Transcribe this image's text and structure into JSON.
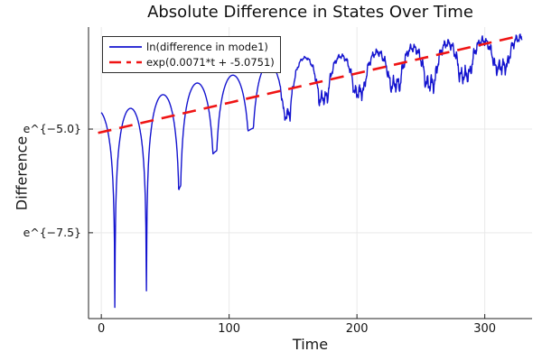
{
  "chart_data": {
    "type": "line",
    "title": "Absolute Difference in States Over Time",
    "xlabel": "Time",
    "ylabel": "Difference",
    "x_axis": {
      "range": [
        -10,
        337
      ]
    },
    "y_axis": {
      "scale": "log",
      "range_ln": [
        -9.57,
        -2.54
      ]
    },
    "xlim": [
      -10,
      337
    ],
    "ylim_ln": [
      -9.57,
      -2.54
    ],
    "grid": true,
    "legend_position": "top-left",
    "x_ticks": {
      "values": [
        0,
        100,
        200,
        300
      ],
      "labels": [
        "0",
        "100",
        "200",
        "300"
      ]
    },
    "y_ticks": {
      "values": [
        -5.0,
        -7.5
      ],
      "labels": [
        "e^{−5.0}",
        "e^{−7.5}"
      ]
    },
    "series": [
      {
        "name": "ln(difference in mode1)",
        "color": "#1414cf",
        "style": "solid",
        "model": {
          "comment": "ln|difference| = arch peaks with sharp log-sin cusp dips; values are ln units read from axis",
          "t_start": 0,
          "t_end": 329,
          "lead_t": -16,
          "tail_t": 341,
          "dips": [
            [
              10.6,
              -9.3
            ],
            [
              35.3,
              -8.9
            ],
            [
              61.4,
              -6.4
            ],
            [
              88.9,
              -5.55
            ],
            [
              117.1,
              -5.0
            ],
            [
              145.4,
              -4.65
            ],
            [
              173.6,
              -4.25
            ],
            [
              201.8,
              -4.1
            ],
            [
              230.1,
              -3.92
            ],
            [
              257.6,
              -3.9
            ],
            [
              284.4,
              -3.7
            ],
            [
              313,
              -3.5
            ]
          ],
          "peaks": [
            [
              -2.7,
              -4.55
            ],
            [
              23,
              -4.5
            ],
            [
              48,
              -4.17
            ],
            [
              75,
              -3.89
            ],
            [
              103,
              -3.7
            ],
            [
              131,
              -3.41
            ],
            [
              160,
              -3.28
            ],
            [
              188,
              -3.24
            ],
            [
              215,
              -3.15
            ],
            [
              244,
              -3.04
            ],
            [
              271,
              -2.93
            ],
            [
              299,
              -2.87
            ],
            [
              327,
              -2.8
            ]
          ],
          "noise": {
            "onset": 125,
            "ramp": 0.0011,
            "max": 0.13,
            "valley_onset": 140,
            "valley_factor": 0.15,
            "valley_max": 0.18
          }
        }
      },
      {
        "name": "exp(0.0071*t + -5.0751)",
        "color": "#ef1414",
        "style": "dashed",
        "slope": 0.0071,
        "intercept": -5.0751,
        "t_range": [
          -2.5,
          327
        ]
      }
    ],
    "style": {
      "grid_color": "#e9e9e9",
      "axis_color": "#222222",
      "text_color": "#151515",
      "background": "#ffffff",
      "legend_border": "#2e2e2e"
    }
  }
}
